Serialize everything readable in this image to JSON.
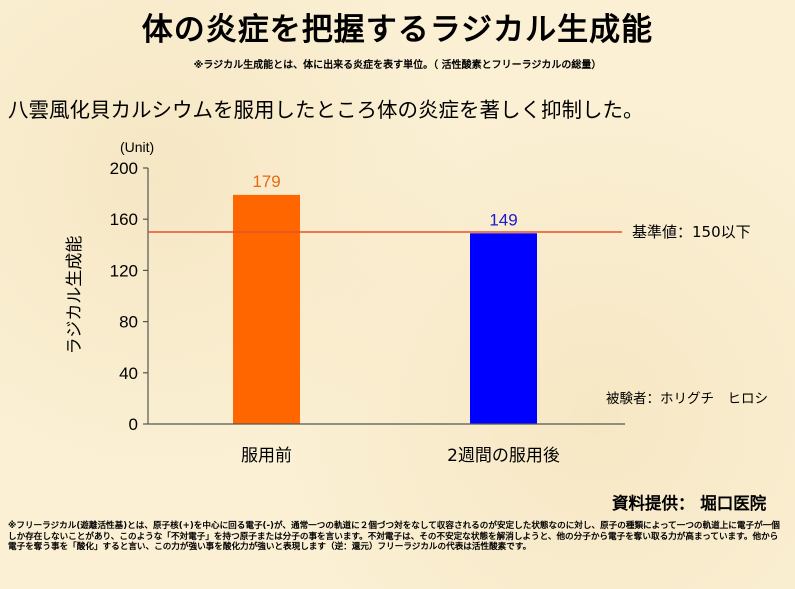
{
  "title": "体の炎症を把握するラジカル生成能",
  "subtitle": "※ラジカル生成能とは、体に出来る炎症を表す単位。（ 活性酸素とフリーラジカルの総量）",
  "headline": "八雲風化貝カルシウムを服用したところ体の炎症を著しく抑制した。",
  "subject": "被験者：ホリグチ　ヒロシ",
  "credit": "資料提供：  堀口医院",
  "note": "※フリーラジカル(遊離活性基)とは、原子核(+)を中心に回る電子(-)が、通常一つの軌道に２個づつ対をなして収容されるのが安定した状態なのに対し、原子の種類によって一つの軌道上に電子が一個しか存在しないことがあり、このような「不対電子」を持つ原子または分子の事を言います。不対電子は、その不安定な状態を解消しようと、他の分子から電子を奪い取る力が高まっています。他から電子を奪う事を「酸化」すると言い、この力が強い事を酸化力が強いと表現します（逆：還元）フリーラジカルの代表は活性酸素です。",
  "chart_data": {
    "type": "bar",
    "categories": [
      "服用前",
      "2週間の服用後"
    ],
    "values": [
      179,
      149
    ],
    "bar_colors": [
      "#ff6600",
      "#0000ff"
    ],
    "label_colors": [
      "#e86a10",
      "#1a1ad0"
    ],
    "unit_label": "(Unit)",
    "ylabel": "ラジカル生成能",
    "ylim": [
      0,
      200
    ],
    "yticks": [
      0,
      40,
      80,
      120,
      160,
      200
    ],
    "reference_line": {
      "value": 150,
      "label": "基準値：150以下",
      "color": "#e8502a"
    }
  }
}
